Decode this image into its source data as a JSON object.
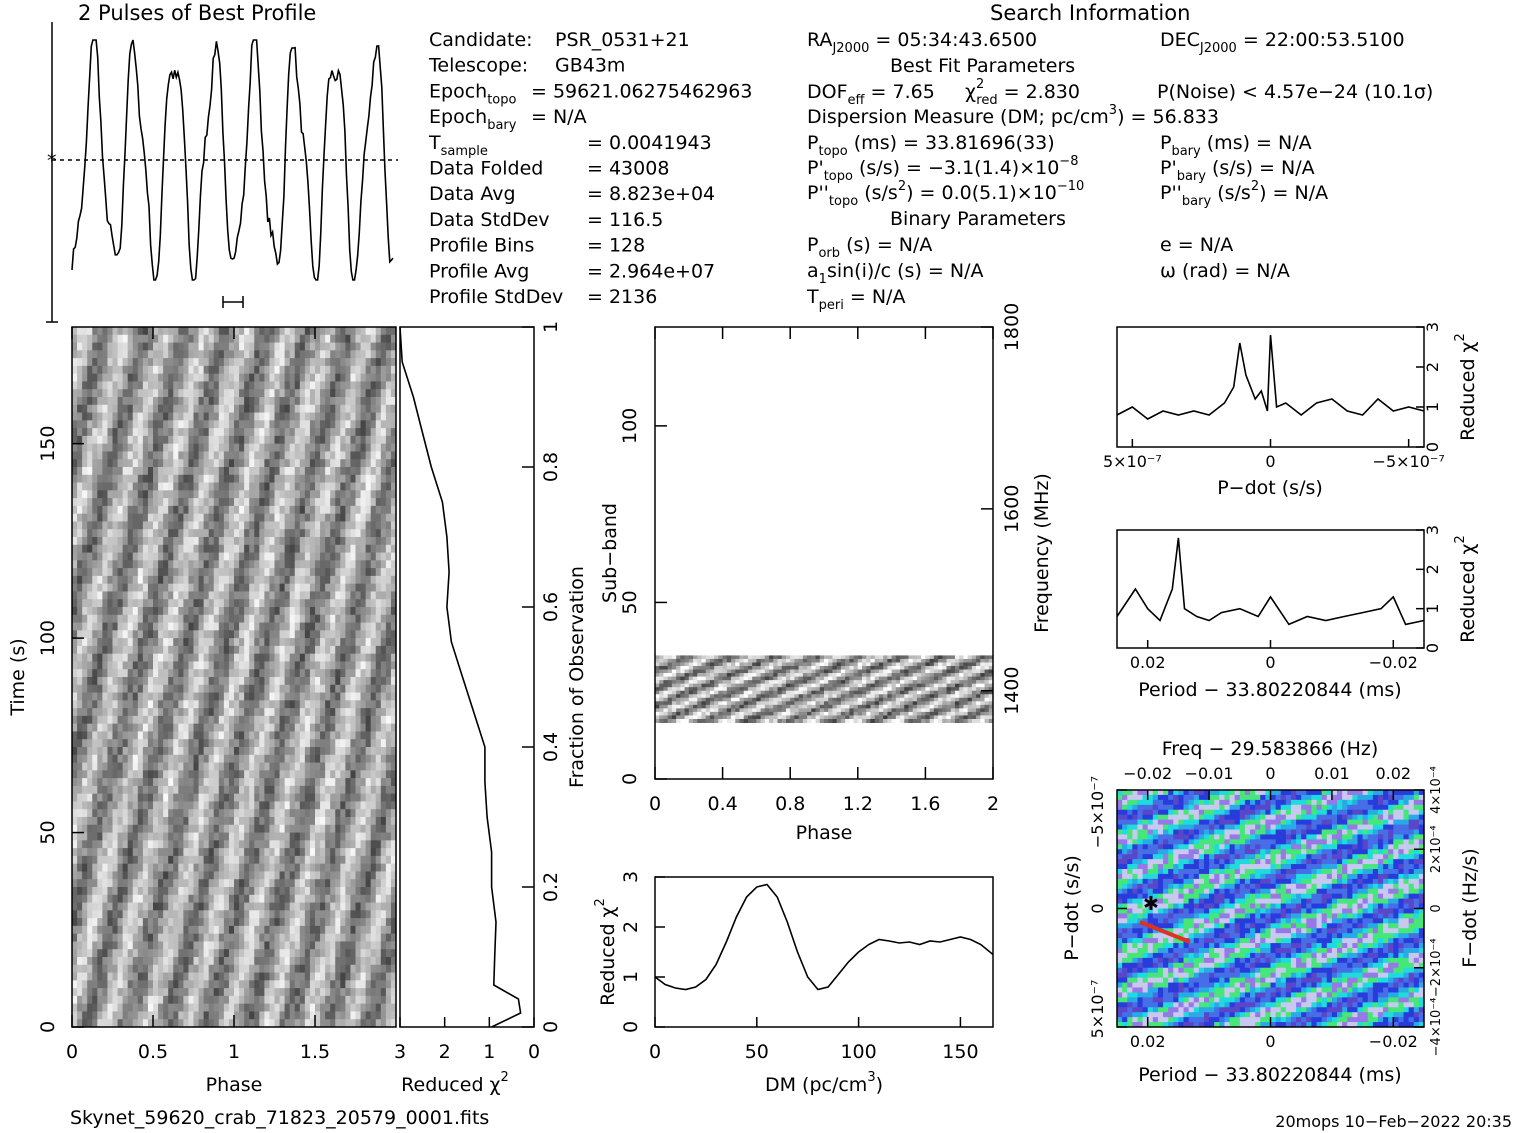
{
  "header": {
    "profile_title": "2 Pulses of Best Profile",
    "search_title": "Search Information",
    "best_fit_title": "Best Fit Parameters",
    "binary_title": "Binary Parameters",
    "footer_left": "Skynet_59620_crab_71823_20579_0001.fits",
    "footer_right": "20mops  10−Feb−2022 20:35"
  },
  "info_left": [
    {
      "label": "Candidate:",
      "value": "PSR_0531+21"
    },
    {
      "label": "Telescope:",
      "value": "GB43m"
    },
    {
      "label": "Epoch",
      "sub": "topo",
      "value": "= 59621.06275462963"
    },
    {
      "label": "Epoch",
      "sub": "bary",
      "value": "= N/A"
    },
    {
      "label": "T",
      "sub": "sample",
      "value": "=   0.0041943"
    },
    {
      "label": "Data Folded",
      "value": "=   43008"
    },
    {
      "label": "Data Avg",
      "value": "=   8.823e+04"
    },
    {
      "label": "Data StdDev",
      "value": "=   116.5"
    },
    {
      "label": "Profile Bins",
      "value": "=   128"
    },
    {
      "label": "Profile Avg",
      "value": "=   2.964e+07"
    },
    {
      "label": "Profile StdDev",
      "value": "=   2136"
    }
  ],
  "search_info": {
    "ra_label": "RA",
    "ra_sub": "J2000",
    "ra_value": " = 05:34:43.6500",
    "dec_label": "DEC",
    "dec_sub": "J2000",
    "dec_value": " = 22:00:53.5100",
    "dof_line": "DOF",
    "dof_sub": "eff",
    "dof_value": " = 7.65",
    "chi_label": "χ",
    "chi_sub": "red",
    "chi_value": " = 2.830",
    "pnoise": "P(Noise) < 4.57e−24   (10.1σ)",
    "dm_line": "Dispersion Measure (DM; pc/cm",
    "dm_value": ") = 56.833",
    "ptopo": "P",
    "ptopo_sub": "topo",
    "ptopo_value": " (ms) =  33.81696(33)",
    "pbary_value": " (ms) = N/A",
    "pdtopo_value": " (s/s) = −3.1(1.4)×10",
    "pdtopo_exp": "−8",
    "pdbary_value": " (s/s) = N/A",
    "pddtopo_value": " (s/s",
    "pddtopo_value2": ") = 0.0(5.1)×10",
    "pddtopo_exp": "−10",
    "pddbary_value": " (s/s",
    "pddbary_value2": ") = N/A",
    "porb": "P",
    "porb_sub": "orb",
    "porb_value": " (s) = N/A",
    "ecc": "e = N/A",
    "a1": "a",
    "a1_value": "sin(i)/c (s) = N/A",
    "omega": "ω (rad) = N/A",
    "tperi": "T",
    "tperi_sub": "peri",
    "tperi_value": " = N/A"
  },
  "labels": {
    "phase": "Phase",
    "time": "Time (s)",
    "reduced_chi": "Reduced χ",
    "fraction": "Fraction of Observation",
    "subband": "Sub−band",
    "frequency": "Frequency (MHz)",
    "dm": "DM (pc/cm",
    "pdot": "P−dot (s/s)",
    "period": "Period − 33.80220844 (ms)",
    "freq": "Freq − 29.583866 (Hz)",
    "fdot": "F−dot (Hz/s)"
  },
  "chart_data": [
    {
      "type": "line",
      "title": "2 Pulses of Best Profile",
      "x_range": [
        0,
        2
      ],
      "peaks_phase": [
        0.2,
        0.5,
        0.75,
        1.0,
        1.25,
        1.5,
        1.75,
        2.0
      ],
      "note_marks": "profile over 2 rotations; dotted line = profile average"
    },
    {
      "type": "heatmap",
      "name": "time-phase",
      "xlabel": "Phase",
      "ylabel": "Time (s)",
      "xlim": [
        0,
        2
      ],
      "ylim": [
        0,
        180
      ],
      "x_ticks": [
        "0",
        "0.5",
        "1",
        "1.5"
      ],
      "y_ticks": [
        "0",
        "50",
        "100",
        "150"
      ]
    },
    {
      "type": "line",
      "name": "reduced-chi2-vs-fraction",
      "xlabel": "Reduced χ²",
      "ylabel": "Fraction of Observation",
      "xlim": [
        3,
        0
      ],
      "ylim": [
        0,
        1
      ],
      "x_ticks": [
        "3",
        "2",
        "1",
        "0"
      ],
      "y_ticks": [
        "0",
        "0.2",
        "0.4",
        "0.6",
        "0.8",
        "1"
      ],
      "y": [
        0,
        0.02,
        0.04,
        0.06,
        0.1,
        0.15,
        0.2,
        0.25,
        0.3,
        0.35,
        0.4,
        0.45,
        0.5,
        0.55,
        0.6,
        0.65,
        0.7,
        0.75,
        0.8,
        0.85,
        0.9,
        0.95,
        1.0
      ],
      "x": [
        0.95,
        0.3,
        0.35,
        0.9,
        0.88,
        0.85,
        0.95,
        0.95,
        1.05,
        1.1,
        1.1,
        1.35,
        1.6,
        1.85,
        1.95,
        1.9,
        1.95,
        2.05,
        2.3,
        2.5,
        2.7,
        2.95,
        3.0
      ]
    },
    {
      "type": "heatmap",
      "name": "subband-phase",
      "xlabel": "Phase",
      "ylabel": "Sub−band",
      "y2label": "Frequency (MHz)",
      "xlim": [
        0,
        2
      ],
      "ylim": [
        0,
        128
      ],
      "x_ticks": [
        "0",
        "0.4",
        "0.8",
        "1.2",
        "1.6",
        "2"
      ],
      "y_ticks": [
        "0",
        "50",
        "100"
      ],
      "y2_ticks": [
        "1400",
        "1600",
        "1800"
      ],
      "data_band": [
        16,
        35
      ]
    },
    {
      "type": "line",
      "name": "reduced-chi2-vs-dm",
      "xlabel": "DM (pc/cm³)",
      "ylabel": "Reduced χ²",
      "xlim": [
        0,
        166
      ],
      "ylim": [
        0,
        3
      ],
      "x_ticks": [
        "0",
        "50",
        "100",
        "150"
      ],
      "y_ticks": [
        "0",
        "1",
        "2",
        "3"
      ],
      "x": [
        0,
        5,
        10,
        15,
        20,
        25,
        30,
        35,
        40,
        45,
        50,
        55,
        60,
        65,
        70,
        75,
        80,
        85,
        90,
        95,
        100,
        105,
        110,
        115,
        120,
        125,
        130,
        135,
        140,
        145,
        150,
        155,
        160,
        166
      ],
      "y": [
        1.0,
        0.85,
        0.78,
        0.75,
        0.8,
        0.95,
        1.25,
        1.7,
        2.2,
        2.6,
        2.8,
        2.85,
        2.6,
        2.1,
        1.5,
        1.0,
        0.75,
        0.8,
        1.05,
        1.3,
        1.5,
        1.65,
        1.75,
        1.72,
        1.68,
        1.7,
        1.65,
        1.72,
        1.7,
        1.75,
        1.8,
        1.75,
        1.65,
        1.45
      ]
    },
    {
      "type": "line",
      "name": "reduced-chi2-vs-pdot",
      "xlabel": "P−dot (s/s)",
      "ylabel": "Reduced χ²",
      "xlim": [
        5e-07,
        -5e-07
      ],
      "ylim": [
        0,
        3
      ],
      "x_ticks": [
        "5×10⁻⁷",
        "0",
        "−5×10⁻⁷"
      ],
      "y_ticks": [
        "0",
        "1",
        "2",
        "3"
      ],
      "x": [
        5,
        4.5,
        4,
        3.5,
        3,
        2.5,
        2,
        1.5,
        1.2,
        1,
        0.8,
        0.5,
        0.3,
        0.1,
        0,
        -0.2,
        -0.5,
        -1,
        -1.5,
        -2,
        -2.5,
        -3,
        -3.5,
        -4,
        -4.5,
        -5
      ],
      "y": [
        0.8,
        1.0,
        0.7,
        0.9,
        0.8,
        0.9,
        0.8,
        1.1,
        1.5,
        2.6,
        1.8,
        1.2,
        1.4,
        0.9,
        2.8,
        1.0,
        1.1,
        0.8,
        1.1,
        1.2,
        0.9,
        0.8,
        1.2,
        0.9,
        1.0,
        0.9
      ]
    },
    {
      "type": "line",
      "name": "reduced-chi2-vs-period",
      "xlabel": "Period − 33.80220844 (ms)",
      "ylabel": "Reduced χ²",
      "xlim": [
        0.025,
        -0.025
      ],
      "ylim": [
        0,
        3
      ],
      "x_ticks": [
        "0.02",
        "0",
        "−0.02"
      ],
      "y_ticks": [
        "0",
        "1",
        "2",
        "3"
      ],
      "x": [
        0.025,
        0.022,
        0.02,
        0.018,
        0.016,
        0.015,
        0.014,
        0.012,
        0.01,
        0.008,
        0.005,
        0.002,
        0,
        -0.003,
        -0.006,
        -0.009,
        -0.012,
        -0.015,
        -0.018,
        -0.02,
        -0.022,
        -0.025
      ],
      "y": [
        0.8,
        1.5,
        1.0,
        0.7,
        1.5,
        2.8,
        1.0,
        0.8,
        0.7,
        0.9,
        1.0,
        0.8,
        1.3,
        0.6,
        0.8,
        0.7,
        0.8,
        0.9,
        1.0,
        1.3,
        0.6,
        0.7
      ]
    },
    {
      "type": "heatmap",
      "name": "period-pdot",
      "xlabel": "Period − 33.80220844 (ms)",
      "ylabel": "P−dot (s/s)",
      "x2label": "Freq − 29.583866 (Hz)",
      "y2label": "F−dot (Hz/s)",
      "xlim": [
        0.025,
        -0.025
      ],
      "ylim": [
        5e-07,
        -5e-07
      ],
      "x_ticks": [
        "0.02",
        "0",
        "−0.02"
      ],
      "x2_ticks": [
        "−0.02",
        "−0.01",
        "0",
        "0.01",
        "0.02"
      ],
      "y_ticks": [
        "5×10⁻⁷",
        "0",
        "−5×10⁻⁷"
      ],
      "y2_ticks": [
        "−4×10⁻⁴",
        "−2×10⁻⁴",
        "0",
        "2×10⁻⁴",
        "4×10⁻⁴"
      ],
      "best_marker": [
        0.015,
        0.0
      ]
    }
  ]
}
